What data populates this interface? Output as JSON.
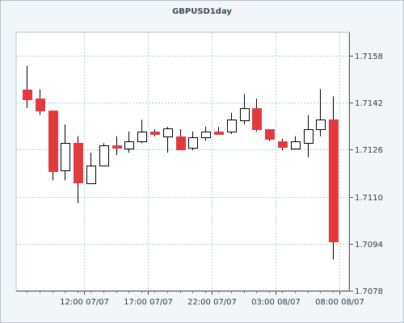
{
  "chart_data": {
    "type": "candlestick",
    "title": "GBPUSD1day",
    "xlabel": "",
    "ylabel": "",
    "ylim": [
      1.7078,
      1.7166
    ],
    "y_ticks": [
      {
        "value": 1.7078,
        "label": "1.7078"
      },
      {
        "value": 1.7094,
        "label": "1.7094"
      },
      {
        "value": 1.711,
        "label": "1.7110"
      },
      {
        "value": 1.7126,
        "label": "1.7126"
      },
      {
        "value": 1.7142,
        "label": "1.7142"
      },
      {
        "value": 1.7158,
        "label": "1.7158"
      }
    ],
    "x_ticks": [
      {
        "index": 4.5,
        "label": "12:00 07/07"
      },
      {
        "index": 9.5,
        "label": "17:00 07/07"
      },
      {
        "index": 14.5,
        "label": "22:00 07/07"
      },
      {
        "index": 19.5,
        "label": "03:00 08/07"
      },
      {
        "index": 24.5,
        "label": "08:00 08/07"
      }
    ],
    "grid": true,
    "colors": {
      "up": "#ffffff",
      "down": "#e23a3d",
      "grid": "#9fd8d8",
      "outline": "#000000"
    },
    "candles": [
      {
        "open": 1.71466,
        "high": 1.71546,
        "low": 1.71402,
        "close": 1.71434
      },
      {
        "open": 1.71434,
        "high": 1.71466,
        "low": 1.71378,
        "close": 1.71394
      },
      {
        "open": 1.71394,
        "high": 1.71394,
        "low": 1.71156,
        "close": 1.71188
      },
      {
        "open": 1.71188,
        "high": 1.71346,
        "low": 1.71156,
        "close": 1.71282
      },
      {
        "open": 1.71282,
        "high": 1.71306,
        "low": 1.71078,
        "close": 1.71146
      },
      {
        "open": 1.71146,
        "high": 1.7125,
        "low": 1.71146,
        "close": 1.71206
      },
      {
        "open": 1.71206,
        "high": 1.71282,
        "low": 1.71206,
        "close": 1.71274
      },
      {
        "open": 1.71274,
        "high": 1.71306,
        "low": 1.71242,
        "close": 1.71266
      },
      {
        "open": 1.71266,
        "high": 1.71322,
        "low": 1.7125,
        "close": 1.7129
      },
      {
        "open": 1.7129,
        "high": 1.71362,
        "low": 1.71282,
        "close": 1.71322
      },
      {
        "open": 1.71322,
        "high": 1.7133,
        "low": 1.71306,
        "close": 1.71314
      },
      {
        "open": 1.71306,
        "high": 1.71338,
        "low": 1.7125,
        "close": 1.71334
      },
      {
        "open": 1.71306,
        "high": 1.7133,
        "low": 1.71258,
        "close": 1.71262
      },
      {
        "open": 1.71266,
        "high": 1.71322,
        "low": 1.71258,
        "close": 1.71302
      },
      {
        "open": 1.71302,
        "high": 1.71338,
        "low": 1.7129,
        "close": 1.71322
      },
      {
        "open": 1.71322,
        "high": 1.71338,
        "low": 1.71314,
        "close": 1.71314
      },
      {
        "open": 1.71322,
        "high": 1.71386,
        "low": 1.71314,
        "close": 1.71362
      },
      {
        "open": 1.71362,
        "high": 1.7145,
        "low": 1.71346,
        "close": 1.71402
      },
      {
        "open": 1.71402,
        "high": 1.71434,
        "low": 1.71322,
        "close": 1.7133
      },
      {
        "open": 1.7133,
        "high": 1.7133,
        "low": 1.7129,
        "close": 1.71298
      },
      {
        "open": 1.7129,
        "high": 1.71298,
        "low": 1.71258,
        "close": 1.7127
      },
      {
        "open": 1.71266,
        "high": 1.71306,
        "low": 1.71266,
        "close": 1.7129
      },
      {
        "open": 1.71282,
        "high": 1.71378,
        "low": 1.71234,
        "close": 1.7133
      },
      {
        "open": 1.7133,
        "high": 1.71466,
        "low": 1.71306,
        "close": 1.71362
      },
      {
        "open": 1.71362,
        "high": 1.71442,
        "low": 1.70886,
        "close": 1.70946
      }
    ]
  }
}
